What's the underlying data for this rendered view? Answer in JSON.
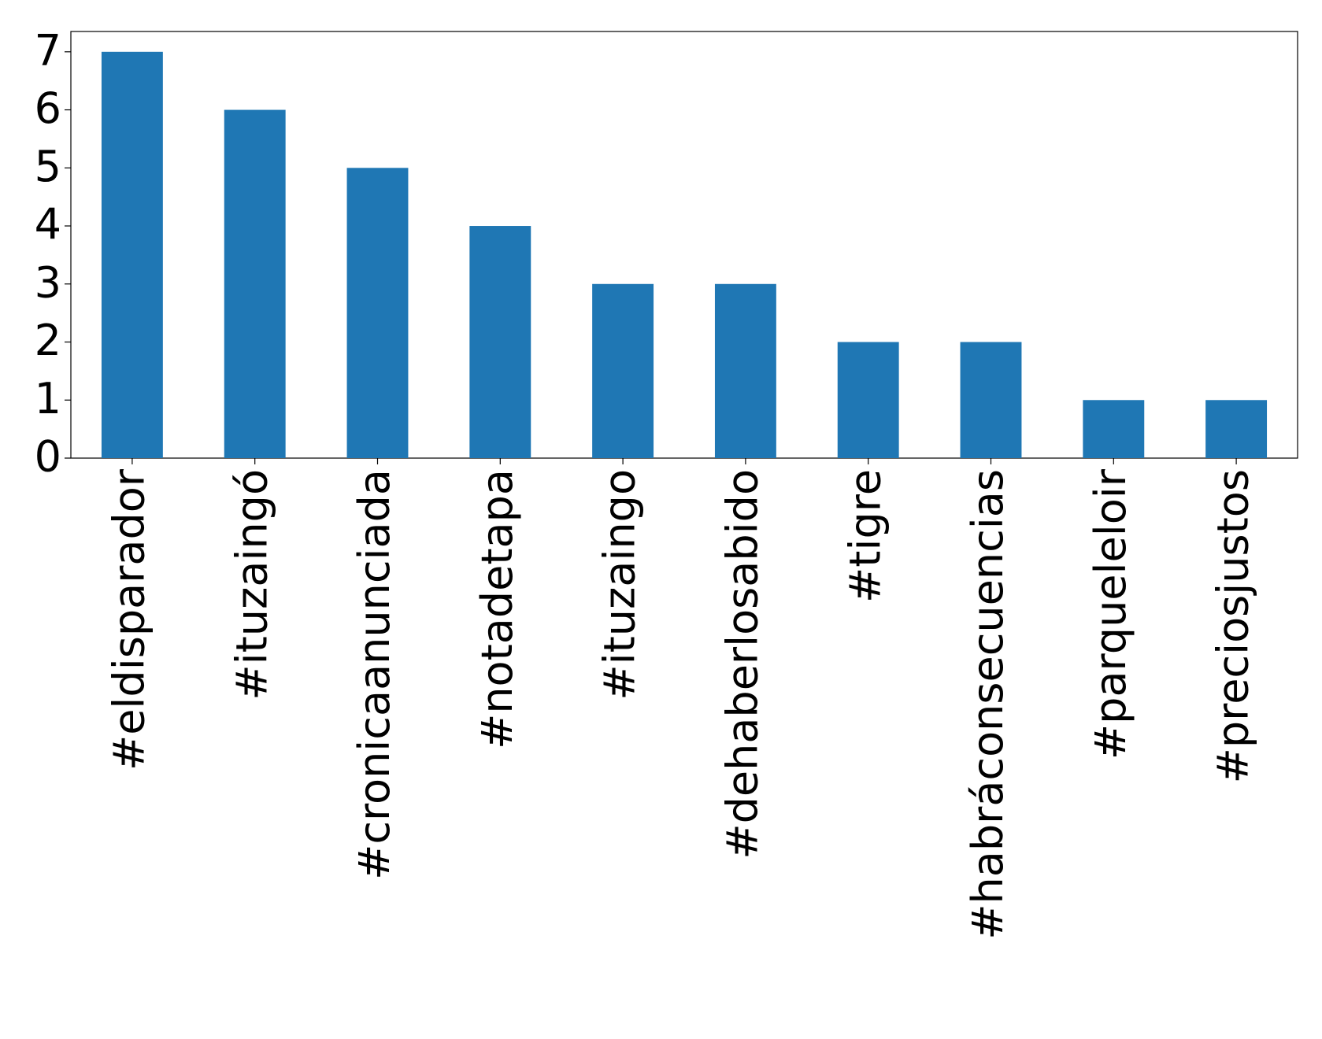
{
  "chart_data": {
    "type": "bar",
    "categories": [
      "#eldisparador",
      "#ituzaingó",
      "#cronicaanunciada",
      "#notadetapa",
      "#ituzaingo",
      "#dehaberlosabido",
      "#tigre",
      "#habráconsecuencias",
      "#parqueleloir",
      "#preciosjustos"
    ],
    "values": [
      7,
      6,
      5,
      4,
      3,
      3,
      2,
      2,
      1,
      1
    ],
    "color": "#1f77b4",
    "ylim": [
      0,
      7.35
    ],
    "yticks": [
      0,
      1,
      2,
      3,
      4,
      5,
      6,
      7
    ],
    "grid": false
  }
}
